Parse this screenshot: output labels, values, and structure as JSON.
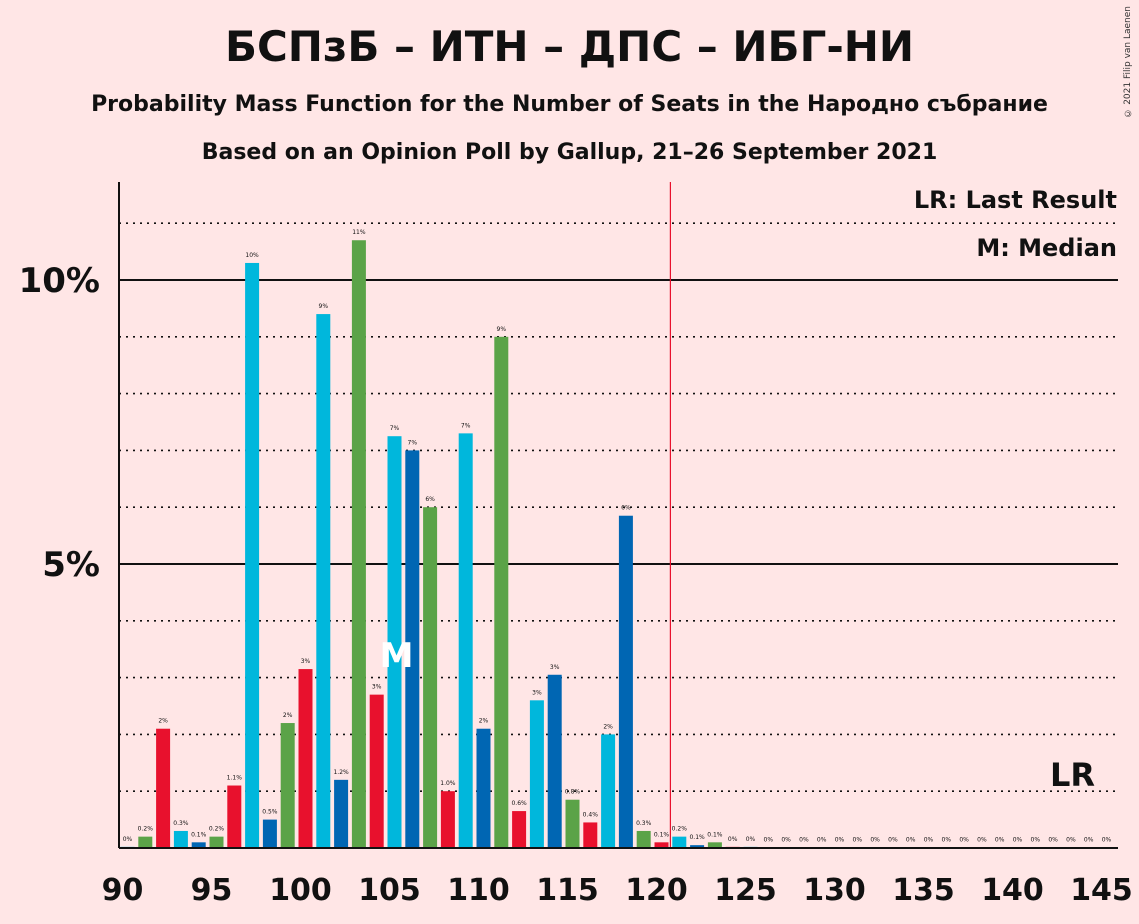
{
  "title": "БСПзБ – ИТН – ДПС – ИБГ-НИ",
  "subtitle1": "Probability Mass Function for the Number of Seats in the Народно събрание",
  "subtitle2": "Based on an Opinion Poll by Gallup, 21–26 September 2021",
  "copyright": "© 2021 Filip van Laenen",
  "legend": {
    "lr": "LR: Last Result",
    "m": "M: Median"
  },
  "markers": {
    "median_label": "M",
    "median_seat": 105,
    "lr_label": "LR",
    "lr_seat": 120.5
  },
  "colors": {
    "background": "#FFE6E6",
    "red": "#E8112D",
    "cyan": "#00B7DC",
    "blue": "#0066B3",
    "green": "#5BA348",
    "lr_line": "#E8112D"
  },
  "chart_data": {
    "type": "bar",
    "xlabel": "",
    "ylabel": "",
    "xlim": [
      90,
      145
    ],
    "ylim": [
      0,
      11.7
    ],
    "x_ticks": [
      "90",
      "95",
      "100",
      "105",
      "110",
      "115",
      "120",
      "125",
      "130",
      "135",
      "140",
      "145"
    ],
    "y_ticks": [
      "5%",
      "10%"
    ],
    "grid": "dotted every 1%, solid at 5% and 10%",
    "bars": [
      {
        "seat": 90,
        "value": 0.02,
        "label": "0%",
        "color": "cyan"
      },
      {
        "seat": 91,
        "value": 0.2,
        "label": "0.2%",
        "color": "green"
      },
      {
        "seat": 92,
        "value": 2.1,
        "label": "2%",
        "color": "red"
      },
      {
        "seat": 93,
        "value": 0.3,
        "label": "0.3%",
        "color": "cyan"
      },
      {
        "seat": 94,
        "value": 0.1,
        "label": "0.1%",
        "color": "blue"
      },
      {
        "seat": 95,
        "value": 0.2,
        "label": "0.2%",
        "color": "green"
      },
      {
        "seat": 96,
        "value": 1.1,
        "label": "1.1%",
        "color": "red"
      },
      {
        "seat": 97,
        "value": 10.3,
        "label": "10%",
        "color": "cyan"
      },
      {
        "seat": 98,
        "value": 0.5,
        "label": "0.5%",
        "color": "blue"
      },
      {
        "seat": 99,
        "value": 2.2,
        "label": "2%",
        "color": "green"
      },
      {
        "seat": 100,
        "value": 3.15,
        "label": "3%",
        "color": "red"
      },
      {
        "seat": 101,
        "value": 9.4,
        "label": "9%",
        "color": "cyan"
      },
      {
        "seat": 102,
        "value": 1.2,
        "label": "1.2%",
        "color": "blue"
      },
      {
        "seat": 103,
        "value": 10.7,
        "label": "11%",
        "color": "green"
      },
      {
        "seat": 104,
        "value": 2.7,
        "label": "3%",
        "color": "red"
      },
      {
        "seat": 105,
        "value": 7.25,
        "label": "7%",
        "color": "cyan"
      },
      {
        "seat": 106,
        "value": 7.0,
        "label": "7%",
        "color": "blue"
      },
      {
        "seat": 107,
        "value": 6.0,
        "label": "6%",
        "color": "green"
      },
      {
        "seat": 108,
        "value": 1.0,
        "label": "1.0%",
        "color": "red"
      },
      {
        "seat": 109,
        "value": 7.3,
        "label": "7%",
        "color": "cyan"
      },
      {
        "seat": 110,
        "value": 2.1,
        "label": "2%",
        "color": "blue"
      },
      {
        "seat": 111,
        "value": 9.0,
        "label": "9%",
        "color": "green"
      },
      {
        "seat": 112,
        "value": 0.65,
        "label": "0.6%",
        "color": "red"
      },
      {
        "seat": 113,
        "value": 2.6,
        "label": "3%",
        "color": "cyan"
      },
      {
        "seat": 114,
        "value": 3.05,
        "label": "3%",
        "color": "blue"
      },
      {
        "seat": 115,
        "value": 0.85,
        "label": "0.8%",
        "color": "green"
      },
      {
        "seat": 116,
        "value": 0.45,
        "label": "0.4%",
        "color": "red"
      },
      {
        "seat": 117,
        "value": 2.0,
        "label": "2%",
        "color": "cyan"
      },
      {
        "seat": 118,
        "value": 5.85,
        "label": "6%",
        "color": "blue"
      },
      {
        "seat": 119,
        "value": 0.3,
        "label": "0.3%",
        "color": "green"
      },
      {
        "seat": 120,
        "value": 0.1,
        "label": "0.1%",
        "color": "red"
      },
      {
        "seat": 121,
        "value": 0.2,
        "label": "0.2%",
        "color": "cyan"
      },
      {
        "seat": 122,
        "value": 0.05,
        "label": "0.1%",
        "color": "blue"
      },
      {
        "seat": 123,
        "value": 0.1,
        "label": "0.1%",
        "color": "green"
      },
      {
        "seat": 124,
        "value": 0.02,
        "label": "0%",
        "color": "red"
      },
      {
        "seat": 125,
        "value": 0.02,
        "label": "0%",
        "color": "cyan"
      },
      {
        "seat": 126,
        "value": 0.01,
        "label": "0%",
        "color": "blue"
      },
      {
        "seat": 127,
        "value": 0.01,
        "label": "0%",
        "color": "green"
      },
      {
        "seat": 128,
        "value": 0.01,
        "label": "0%",
        "color": "red"
      },
      {
        "seat": 129,
        "value": 0.01,
        "label": "0%",
        "color": "cyan"
      },
      {
        "seat": 130,
        "value": 0.01,
        "label": "0%",
        "color": "blue"
      },
      {
        "seat": 131,
        "value": 0.01,
        "label": "0%",
        "color": "green"
      },
      {
        "seat": 132,
        "value": 0.01,
        "label": "0%",
        "color": "red"
      },
      {
        "seat": 133,
        "value": 0.01,
        "label": "0%",
        "color": "cyan"
      },
      {
        "seat": 134,
        "value": 0.01,
        "label": "0%",
        "color": "blue"
      },
      {
        "seat": 135,
        "value": 0.01,
        "label": "0%",
        "color": "green"
      },
      {
        "seat": 136,
        "value": 0.01,
        "label": "0%",
        "color": "red"
      },
      {
        "seat": 137,
        "value": 0.01,
        "label": "0%",
        "color": "cyan"
      },
      {
        "seat": 138,
        "value": 0.01,
        "label": "0%",
        "color": "blue"
      },
      {
        "seat": 139,
        "value": 0.01,
        "label": "0%",
        "color": "green"
      },
      {
        "seat": 140,
        "value": 0.01,
        "label": "0%",
        "color": "red"
      },
      {
        "seat": 141,
        "value": 0.01,
        "label": "0%",
        "color": "cyan"
      },
      {
        "seat": 142,
        "value": 0.01,
        "label": "0%",
        "color": "blue"
      },
      {
        "seat": 143,
        "value": 0.01,
        "label": "0%",
        "color": "green"
      },
      {
        "seat": 144,
        "value": 0.01,
        "label": "0%",
        "color": "red"
      },
      {
        "seat": 145,
        "value": 0.01,
        "label": "0%",
        "color": "cyan"
      }
    ]
  }
}
